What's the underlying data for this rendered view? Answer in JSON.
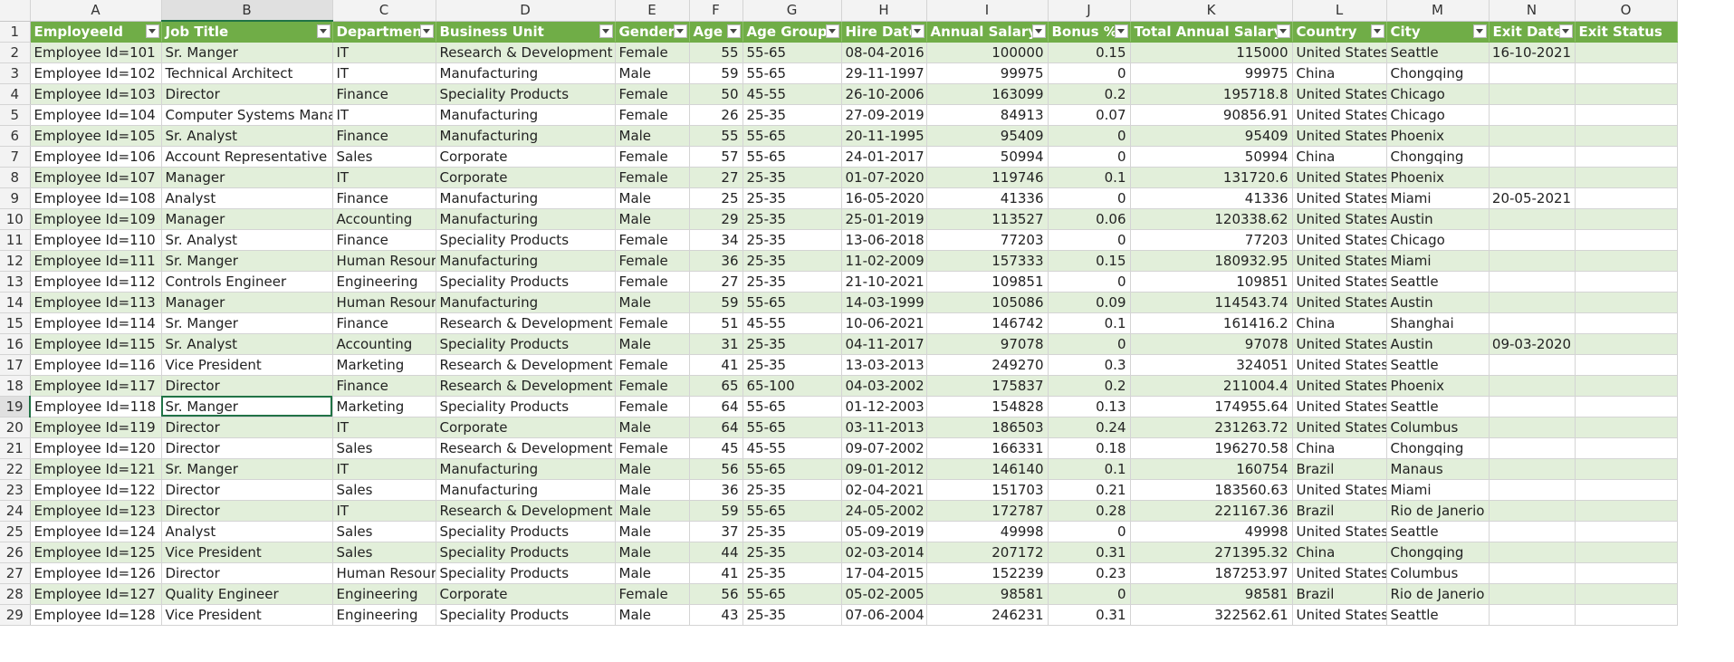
{
  "columns": [
    "A",
    "B",
    "C",
    "D",
    "E",
    "F",
    "G",
    "H",
    "I",
    "J",
    "K",
    "L",
    "M",
    "N",
    "O"
  ],
  "active_column": "B",
  "active_row": "19",
  "colors": {
    "header_fill": "#70ad47",
    "band_fill": "#e2efda",
    "selection": "#217346"
  },
  "headers": [
    "EmployeeId",
    "Job Title",
    "Department",
    "Business Unit",
    "Gender",
    "Age",
    "Age Group",
    "Hire Date",
    "Annual Salary",
    "Bonus %",
    "Total Annual Salary",
    "Country",
    "City",
    "Exit Date",
    "Exit Status"
  ],
  "rows": [
    {
      "n": "2",
      "c": [
        "Employee Id=101",
        "Sr. Manger",
        "IT",
        "Research & Development",
        "Female",
        "55",
        "55-65",
        "08-04-2016",
        "100000",
        "0.15",
        "115000",
        "United States",
        "Seattle",
        "16-10-2021",
        ""
      ]
    },
    {
      "n": "3",
      "c": [
        "Employee Id=102",
        "Technical Architect",
        "IT",
        "Manufacturing",
        "Male",
        "59",
        "55-65",
        "29-11-1997",
        "99975",
        "0",
        "99975",
        "China",
        "Chongqing",
        "",
        ""
      ]
    },
    {
      "n": "4",
      "c": [
        "Employee Id=103",
        "Director",
        "Finance",
        "Speciality Products",
        "Female",
        "50",
        "45-55",
        "26-10-2006",
        "163099",
        "0.2",
        "195718.8",
        "United States",
        "Chicago",
        "",
        ""
      ]
    },
    {
      "n": "5",
      "c": [
        "Employee Id=104",
        "Computer Systems Manager",
        "IT",
        "Manufacturing",
        "Female",
        "26",
        "25-35",
        "27-09-2019",
        "84913",
        "0.07",
        "90856.91",
        "United States",
        "Chicago",
        "",
        ""
      ]
    },
    {
      "n": "6",
      "c": [
        "Employee Id=105",
        "Sr. Analyst",
        "Finance",
        "Manufacturing",
        "Male",
        "55",
        "55-65",
        "20-11-1995",
        "95409",
        "0",
        "95409",
        "United States",
        "Phoenix",
        "",
        ""
      ]
    },
    {
      "n": "7",
      "c": [
        "Employee Id=106",
        "Account Representative",
        "Sales",
        "Corporate",
        "Female",
        "57",
        "55-65",
        "24-01-2017",
        "50994",
        "0",
        "50994",
        "China",
        "Chongqing",
        "",
        ""
      ]
    },
    {
      "n": "8",
      "c": [
        "Employee Id=107",
        "Manager",
        "IT",
        "Corporate",
        "Female",
        "27",
        "25-35",
        "01-07-2020",
        "119746",
        "0.1",
        "131720.6",
        "United States",
        "Phoenix",
        "",
        ""
      ]
    },
    {
      "n": "9",
      "c": [
        "Employee Id=108",
        "Analyst",
        "Finance",
        "Manufacturing",
        "Male",
        "25",
        "25-35",
        "16-05-2020",
        "41336",
        "0",
        "41336",
        "United States",
        "Miami",
        "20-05-2021",
        ""
      ]
    },
    {
      "n": "10",
      "c": [
        "Employee Id=109",
        "Manager",
        "Accounting",
        "Manufacturing",
        "Male",
        "29",
        "25-35",
        "25-01-2019",
        "113527",
        "0.06",
        "120338.62",
        "United States",
        "Austin",
        "",
        ""
      ]
    },
    {
      "n": "11",
      "c": [
        "Employee Id=110",
        "Sr. Analyst",
        "Finance",
        "Speciality Products",
        "Female",
        "34",
        "25-35",
        "13-06-2018",
        "77203",
        "0",
        "77203",
        "United States",
        "Chicago",
        "",
        ""
      ]
    },
    {
      "n": "12",
      "c": [
        "Employee Id=111",
        "Sr. Manger",
        "Human Resources",
        "Manufacturing",
        "Female",
        "36",
        "25-35",
        "11-02-2009",
        "157333",
        "0.15",
        "180932.95",
        "United States",
        "Miami",
        "",
        ""
      ]
    },
    {
      "n": "13",
      "c": [
        "Employee Id=112",
        "Controls Engineer",
        "Engineering",
        "Speciality Products",
        "Female",
        "27",
        "25-35",
        "21-10-2021",
        "109851",
        "0",
        "109851",
        "United States",
        "Seattle",
        "",
        ""
      ]
    },
    {
      "n": "14",
      "c": [
        "Employee Id=113",
        "Manager",
        "Human Resources",
        "Manufacturing",
        "Male",
        "59",
        "55-65",
        "14-03-1999",
        "105086",
        "0.09",
        "114543.74",
        "United States",
        "Austin",
        "",
        ""
      ]
    },
    {
      "n": "15",
      "c": [
        "Employee Id=114",
        "Sr. Manger",
        "Finance",
        "Research & Development",
        "Female",
        "51",
        "45-55",
        "10-06-2021",
        "146742",
        "0.1",
        "161416.2",
        "China",
        "Shanghai",
        "",
        ""
      ]
    },
    {
      "n": "16",
      "c": [
        "Employee Id=115",
        "Sr. Analyst",
        "Accounting",
        "Speciality Products",
        "Male",
        "31",
        "25-35",
        "04-11-2017",
        "97078",
        "0",
        "97078",
        "United States",
        "Austin",
        "09-03-2020",
        ""
      ]
    },
    {
      "n": "17",
      "c": [
        "Employee Id=116",
        "Vice President",
        "Marketing",
        "Research & Development",
        "Female",
        "41",
        "25-35",
        "13-03-2013",
        "249270",
        "0.3",
        "324051",
        "United States",
        "Seattle",
        "",
        ""
      ]
    },
    {
      "n": "18",
      "c": [
        "Employee Id=117",
        "Director",
        "Finance",
        "Research & Development",
        "Female",
        "65",
        "65-100",
        "04-03-2002",
        "175837",
        "0.2",
        "211004.4",
        "United States",
        "Phoenix",
        "",
        ""
      ]
    },
    {
      "n": "19",
      "c": [
        "Employee Id=118",
        "Sr. Manger",
        "Marketing",
        "Speciality Products",
        "Female",
        "64",
        "55-65",
        "01-12-2003",
        "154828",
        "0.13",
        "174955.64",
        "United States",
        "Seattle",
        "",
        ""
      ]
    },
    {
      "n": "20",
      "c": [
        "Employee Id=119",
        "Director",
        "IT",
        "Corporate",
        "Male",
        "64",
        "55-65",
        "03-11-2013",
        "186503",
        "0.24",
        "231263.72",
        "United States",
        "Columbus",
        "",
        ""
      ]
    },
    {
      "n": "21",
      "c": [
        "Employee Id=120",
        "Director",
        "Sales",
        "Research & Development",
        "Female",
        "45",
        "45-55",
        "09-07-2002",
        "166331",
        "0.18",
        "196270.58",
        "China",
        "Chongqing",
        "",
        ""
      ]
    },
    {
      "n": "22",
      "c": [
        "Employee Id=121",
        "Sr. Manger",
        "IT",
        "Manufacturing",
        "Male",
        "56",
        "55-65",
        "09-01-2012",
        "146140",
        "0.1",
        "160754",
        "Brazil",
        "Manaus",
        "",
        ""
      ]
    },
    {
      "n": "23",
      "c": [
        "Employee Id=122",
        "Director",
        "Sales",
        "Manufacturing",
        "Male",
        "36",
        "25-35",
        "02-04-2021",
        "151703",
        "0.21",
        "183560.63",
        "United States",
        "Miami",
        "",
        ""
      ]
    },
    {
      "n": "24",
      "c": [
        "Employee Id=123",
        "Director",
        "IT",
        "Research & Development",
        "Male",
        "59",
        "55-65",
        "24-05-2002",
        "172787",
        "0.28",
        "221167.36",
        "Brazil",
        "Rio de Janerio",
        "",
        ""
      ]
    },
    {
      "n": "25",
      "c": [
        "Employee Id=124",
        "Analyst",
        "Sales",
        "Speciality Products",
        "Male",
        "37",
        "25-35",
        "05-09-2019",
        "49998",
        "0",
        "49998",
        "United States",
        "Seattle",
        "",
        ""
      ]
    },
    {
      "n": "26",
      "c": [
        "Employee Id=125",
        "Vice President",
        "Sales",
        "Speciality Products",
        "Male",
        "44",
        "25-35",
        "02-03-2014",
        "207172",
        "0.31",
        "271395.32",
        "China",
        "Chongqing",
        "",
        ""
      ]
    },
    {
      "n": "27",
      "c": [
        "Employee Id=126",
        "Director",
        "Human Resources",
        "Speciality Products",
        "Male",
        "41",
        "25-35",
        "17-04-2015",
        "152239",
        "0.23",
        "187253.97",
        "United States",
        "Columbus",
        "",
        ""
      ]
    },
    {
      "n": "28",
      "c": [
        "Employee Id=127",
        "Quality Engineer",
        "Engineering",
        "Corporate",
        "Female",
        "56",
        "55-65",
        "05-02-2005",
        "98581",
        "0",
        "98581",
        "Brazil",
        "Rio de Janerio",
        "",
        ""
      ]
    },
    {
      "n": "29",
      "c": [
        "Employee Id=128",
        "Vice President",
        "Engineering",
        "Speciality Products",
        "Male",
        "43",
        "25-35",
        "07-06-2004",
        "246231",
        "0.31",
        "322562.61",
        "United States",
        "Seattle",
        "",
        ""
      ]
    }
  ]
}
